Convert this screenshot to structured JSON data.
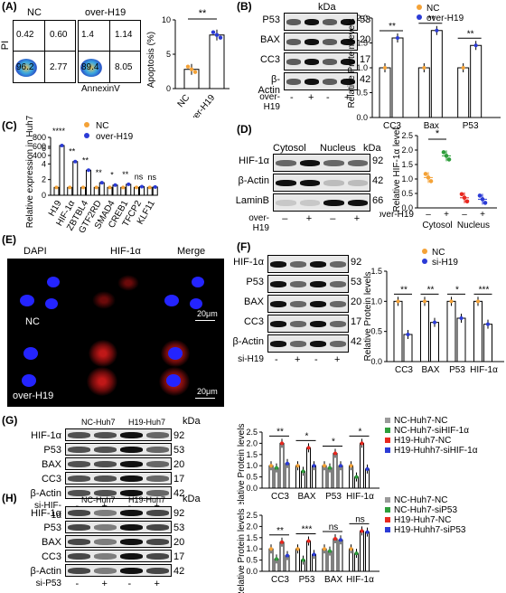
{
  "colors": {
    "nc": "#f4a237",
    "over": "#2b3bd6",
    "green": "#2e9e3b",
    "red": "#e8281f",
    "dapi": "#1a1aff",
    "hif": "#e01010",
    "grey": "#9a9a9a"
  },
  "panels": {
    "A": "(A)",
    "B": "(B)",
    "C": "(C)",
    "D": "(D)",
    "E": "(E)",
    "F": "(F)",
    "G": "(G)",
    "H": "(H)"
  },
  "A": {
    "nc_title": "NC",
    "over_title": "over-H19",
    "y_axis": "PI",
    "x_axis": "AnnexinV",
    "nc_quads": [
      "0.42",
      "0.60",
      "96.2",
      "2.77"
    ],
    "over_quads": [
      "1.4",
      "1.14",
      "89.4",
      "8.05"
    ],
    "bar_ylabel": "Apoptosis (%)",
    "bar_yticks": [
      "0",
      "5",
      "10"
    ],
    "bar_cats": [
      "NC",
      "over-H19"
    ],
    "sig": "**"
  },
  "B": {
    "kda": "kDa",
    "rows": [
      {
        "name": "P53",
        "kda": "53"
      },
      {
        "name": "BAX",
        "kda": "20"
      },
      {
        "name": "CC3",
        "kda": "17"
      },
      {
        "name": "β-Actin",
        "kda": "42"
      }
    ],
    "treat_label": "over-H19",
    "treat": [
      "-",
      "+",
      "-",
      "+"
    ],
    "legend": [
      "NC",
      "over-H19"
    ],
    "ylabel": "Relative Protein levels",
    "yticks": [
      "0.0",
      "0.5",
      "1.0",
      "1.5",
      "2.0"
    ],
    "cats": [
      "CC3",
      "Bax",
      "P53"
    ],
    "sig": [
      "**",
      "**",
      "**"
    ]
  },
  "C": {
    "ylabel": "Relative expression in Huh7",
    "yticks_top": [
      "400",
      "600",
      "800"
    ],
    "yticks_bot": [
      "0",
      "2",
      "4",
      "6"
    ],
    "legend": [
      "NC",
      "over-H19"
    ],
    "genes": [
      "H19",
      "HIF-1α",
      "ZBTBL4",
      "GTF2RD",
      "SMAD4",
      "CREB1",
      "TFCP2",
      "KLF11"
    ],
    "sig": [
      "****",
      "**",
      "**",
      "**",
      "*",
      "**",
      "ns",
      "ns"
    ]
  },
  "D": {
    "cytosol": "Cytosol",
    "nucleus": "Nucleus",
    "kda": "kDa",
    "rows": [
      {
        "name": "HIF-1α",
        "kda": "92"
      },
      {
        "name": "β-Actin",
        "kda": "42"
      },
      {
        "name": "LaminB",
        "kda": "66"
      }
    ],
    "treat_label": "over-H19",
    "treat": [
      "–",
      "+",
      "–",
      "+"
    ],
    "ylabel": "Relative HIF-1α level",
    "yticks": [
      "0.0",
      "0.5",
      "1.0",
      "1.5",
      "2.0",
      "2.5"
    ],
    "x_groups": [
      "Cytosol",
      "Nucleus"
    ],
    "sig": "*"
  },
  "E": {
    "cols": [
      "DAPI",
      "HIF-1α",
      "Merge"
    ],
    "rows": [
      "NC",
      "over-H19"
    ],
    "scale": "20μm"
  },
  "F": {
    "rows": [
      {
        "name": "HIF-1α",
        "kda": "92"
      },
      {
        "name": "P53",
        "kda": "53"
      },
      {
        "name": "BAX",
        "kda": "20"
      },
      {
        "name": "CC3",
        "kda": "17"
      },
      {
        "name": "β-Actin",
        "kda": "42"
      }
    ],
    "treat_label": "si-H19",
    "treat": [
      "-",
      "+",
      "-",
      "+"
    ],
    "legend": [
      "NC",
      "si-H19"
    ],
    "ylabel": "Relative Protein levels",
    "yticks": [
      "0.0",
      "0.5",
      "1.0",
      "1.5"
    ],
    "cats": [
      "CC3",
      "BAX",
      "P53",
      "HIF-1α"
    ],
    "sig": [
      "**",
      "**",
      "*",
      "***"
    ]
  },
  "G": {
    "headers": [
      "NC-Huh7",
      "H19-Huh7"
    ],
    "kda": "kDa",
    "rows": [
      {
        "name": "HIF-1α",
        "kda": "92"
      },
      {
        "name": "P53",
        "kda": "53"
      },
      {
        "name": "BAX",
        "kda": "20"
      },
      {
        "name": "CC3",
        "kda": "17"
      },
      {
        "name": "β-Actin",
        "kda": "42"
      }
    ],
    "treat_label": "si-HIF-1α",
    "treat": [
      "-",
      "+",
      "-",
      "+"
    ],
    "legend": [
      "NC-Huh7-NC",
      "NC-Huh7-siHIF-1α",
      "H19-Huh7-NC",
      "H19-Huhh7-siHIF-1α"
    ],
    "ylabel": "Relative Protein levels",
    "yticks": [
      "0.0",
      "0.5",
      "1.0",
      "1.5",
      "2.0",
      "2.5"
    ],
    "cats": [
      "CC3",
      "BAX",
      "P53",
      "HIF-1α"
    ],
    "sig": [
      "**",
      "*",
      "*",
      "*"
    ]
  },
  "H": {
    "headers": [
      "NC-Huh7",
      "H19-Huh7"
    ],
    "kda": "kDa",
    "rows": [
      {
        "name": "HIF-1α",
        "kda": "92"
      },
      {
        "name": "P53",
        "kda": "53"
      },
      {
        "name": "BAX",
        "kda": "20"
      },
      {
        "name": "CC3",
        "kda": "17"
      },
      {
        "name": "β-Actin",
        "kda": "42"
      }
    ],
    "treat_label": "si-P53",
    "treat": [
      "-",
      "+",
      "-",
      "+"
    ],
    "legend": [
      "NC-Huh7-NC",
      "NC-Huh7-siP53",
      "H19-Huh7-NC",
      "H19-Huhh7-siP53"
    ],
    "ylabel": "Relative Protein levels",
    "yticks": [
      "0.0",
      "0.5",
      "1.0",
      "1.5",
      "2.0",
      "2.5"
    ],
    "cats": [
      "CC3",
      "P53",
      "BAX",
      "HIF-1α"
    ],
    "sig": [
      "**",
      "***",
      "ns",
      "ns"
    ]
  },
  "chart_data": [
    {
      "panel": "A",
      "type": "bar",
      "categories": [
        "NC",
        "over-H19"
      ],
      "values": [
        2.8,
        7.8
      ],
      "ylabel": "Apoptosis (%)",
      "ylim": [
        0,
        10
      ]
    },
    {
      "panel": "B",
      "type": "bar",
      "categories": [
        "CC3",
        "Bax",
        "P53"
      ],
      "series": [
        {
          "name": "NC",
          "values": [
            1.0,
            1.0,
            1.0
          ]
        },
        {
          "name": "over-H19",
          "values": [
            1.6,
            1.75,
            1.45
          ]
        }
      ],
      "ylabel": "Relative Protein levels",
      "ylim": [
        0,
        2.0
      ]
    },
    {
      "panel": "C",
      "type": "bar",
      "categories": [
        "H19",
        "HIF-1α",
        "ZBTBL4",
        "GTF2RD",
        "SMAD4",
        "CREB1",
        "TFCP2",
        "KLF11"
      ],
      "series": [
        {
          "name": "NC",
          "values": [
            1,
            1,
            1,
            1,
            1,
            1,
            1,
            1
          ]
        },
        {
          "name": "over-H19",
          "values": [
            620,
            4.3,
            3.2,
            1.6,
            1.3,
            1.4,
            1.1,
            1.05
          ]
        }
      ],
      "ylabel": "Relative expression in Huh7"
    },
    {
      "panel": "D",
      "type": "scatter",
      "categories": [
        "Cytosol -",
        "Cytosol +",
        "Nucleus -",
        "Nucleus +"
      ],
      "values": [
        1.05,
        1.8,
        0.35,
        0.3
      ],
      "ylabel": "Relative HIF-1α level",
      "ylim": [
        0,
        2.5
      ]
    },
    {
      "panel": "F",
      "type": "bar",
      "categories": [
        "CC3",
        "BAX",
        "P53",
        "HIF-1α"
      ],
      "series": [
        {
          "name": "NC",
          "values": [
            1.0,
            1.0,
            1.0,
            1.0
          ]
        },
        {
          "name": "si-H19",
          "values": [
            0.45,
            0.65,
            0.72,
            0.62
          ]
        }
      ],
      "ylabel": "Relative Protein levels",
      "ylim": [
        0,
        1.5
      ]
    },
    {
      "panel": "G",
      "type": "bar",
      "categories": [
        "CC3",
        "BAX",
        "P53",
        "HIF-1α"
      ],
      "series": [
        {
          "name": "NC-Huh7-NC",
          "values": [
            1.0,
            1.0,
            1.0,
            1.0
          ]
        },
        {
          "name": "NC-Huh7-siHIF-1α",
          "values": [
            0.9,
            0.75,
            0.9,
            0.5
          ]
        },
        {
          "name": "H19-Huh7-NC",
          "values": [
            2.0,
            1.8,
            1.55,
            2.0
          ]
        },
        {
          "name": "H19-Huhh7-siHIF-1α",
          "values": [
            1.1,
            1.0,
            1.0,
            0.85
          ]
        }
      ],
      "ylabel": "Relative Protein levels",
      "ylim": [
        0,
        2.5
      ]
    },
    {
      "panel": "H",
      "type": "bar",
      "categories": [
        "CC3",
        "P53",
        "BAX",
        "HIF-1α"
      ],
      "series": [
        {
          "name": "NC-Huh7-NC",
          "values": [
            1.0,
            1.0,
            1.0,
            1.0
          ]
        },
        {
          "name": "NC-Huh7-siP53",
          "values": [
            0.55,
            0.5,
            0.9,
            0.8
          ]
        },
        {
          "name": "H19-Huh7-NC",
          "values": [
            1.3,
            1.35,
            1.45,
            1.8
          ]
        },
        {
          "name": "H19-Huhh7-siP53",
          "values": [
            0.7,
            0.75,
            1.4,
            1.75
          ]
        }
      ],
      "ylabel": "Relative Protein levels",
      "ylim": [
        0,
        2.5
      ]
    }
  ]
}
